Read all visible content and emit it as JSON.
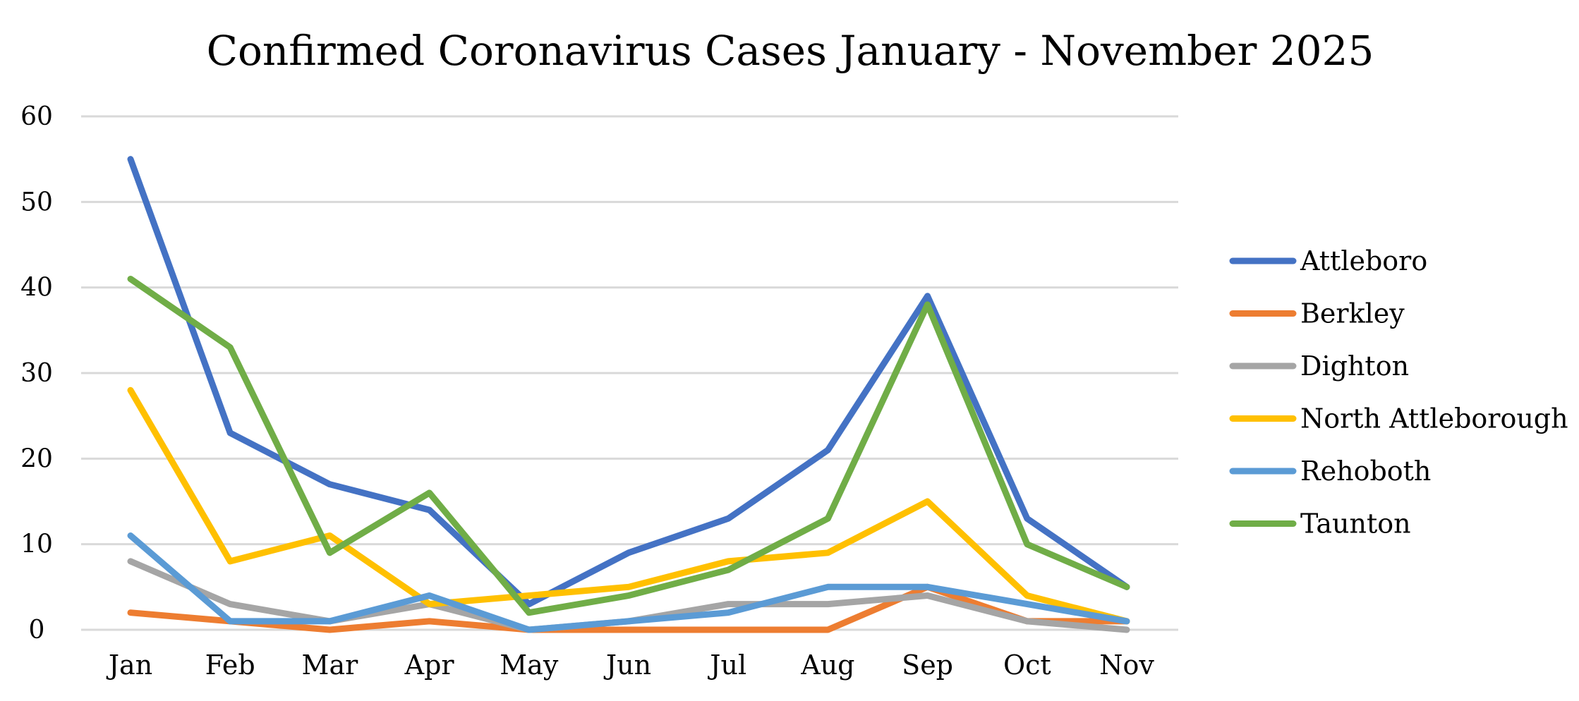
{
  "chart_data": {
    "type": "line",
    "title": "Confirmed Coronavirus Cases January - November 2025",
    "xlabel": "",
    "ylabel": "",
    "categories": [
      "Jan",
      "Feb",
      "Mar",
      "Apr",
      "May",
      "Jun",
      "Jul",
      "Aug",
      "Sep",
      "Oct",
      "Nov"
    ],
    "ylim": [
      0,
      60
    ],
    "yticks": [
      "0",
      "10",
      "20",
      "30",
      "40",
      "50",
      "60"
    ],
    "grid": true,
    "legend_position": "right",
    "series": [
      {
        "name": "Attleboro",
        "color": "#4472C4",
        "values": [
          55,
          23,
          17,
          14,
          3,
          9,
          13,
          21,
          39,
          13,
          5
        ]
      },
      {
        "name": "Berkley",
        "color": "#ED7D31",
        "values": [
          2,
          1,
          0,
          1,
          0,
          0,
          0,
          0,
          5,
          1,
          1
        ]
      },
      {
        "name": "Dighton",
        "color": "#A5A5A5",
        "values": [
          8,
          3,
          1,
          3,
          0,
          1,
          3,
          3,
          4,
          1,
          0
        ]
      },
      {
        "name": "North Attleborough",
        "color": "#FFC000",
        "values": [
          28,
          8,
          11,
          3,
          4,
          5,
          8,
          9,
          15,
          4,
          1
        ]
      },
      {
        "name": "Rehoboth",
        "color": "#5B9BD5",
        "values": [
          11,
          1,
          1,
          4,
          0,
          1,
          2,
          5,
          5,
          3,
          1
        ]
      },
      {
        "name": "Taunton",
        "color": "#70AD47",
        "values": [
          41,
          33,
          9,
          16,
          2,
          4,
          7,
          13,
          38,
          10,
          5
        ]
      }
    ]
  }
}
